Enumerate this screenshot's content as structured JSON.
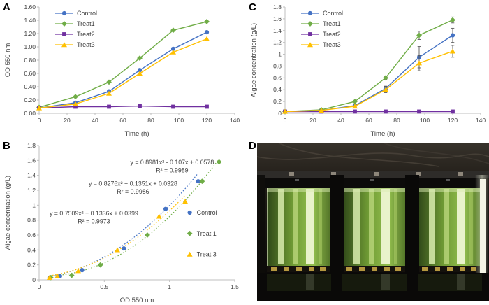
{
  "figure": {
    "panels": {
      "a": {
        "label": "A"
      },
      "b": {
        "label": "B"
      },
      "c": {
        "label": "C"
      },
      "d": {
        "label": "D"
      }
    }
  },
  "colors": {
    "control": "#4472C4",
    "treat1": "#70AD47",
    "treat2": "#7030A0",
    "treat3": "#FFC000",
    "axis": "#BFBFBF",
    "text": "#404040",
    "error_bar": "#595959"
  },
  "chart_data": [
    {
      "panel": "A",
      "type": "line",
      "xlabel": "Time (h)",
      "ylabel": "OD 550 nm",
      "xlim": [
        0,
        140
      ],
      "ylim": [
        0,
        1.6
      ],
      "xticks": [
        0,
        20,
        40,
        60,
        80,
        100,
        120,
        140
      ],
      "yticks": [
        0,
        0.2,
        0.4,
        0.6,
        0.8,
        1.0,
        1.2,
        1.4,
        1.6
      ],
      "xtick_format": "trim",
      "ytick_format": "fixed2",
      "grid": false,
      "legend_position": "top-left-inside",
      "x": [
        0,
        26,
        50,
        72,
        96,
        120
      ],
      "series": [
        {
          "name": "Control",
          "marker": "circle",
          "color": "control",
          "values": [
            0.08,
            0.16,
            0.33,
            0.65,
            0.97,
            1.22
          ]
        },
        {
          "name": "Treat1",
          "marker": "diamond",
          "color": "treat1",
          "values": [
            0.09,
            0.25,
            0.47,
            0.83,
            1.25,
            1.38
          ]
        },
        {
          "name": "Treat2",
          "marker": "square",
          "color": "treat2",
          "values": [
            0.08,
            0.1,
            0.1,
            0.11,
            0.1,
            0.1
          ]
        },
        {
          "name": "Treat3",
          "marker": "triangle",
          "color": "treat3",
          "values": [
            0.08,
            0.14,
            0.3,
            0.6,
            0.92,
            1.12
          ]
        }
      ]
    },
    {
      "panel": "C",
      "type": "line",
      "xlabel": "Time (h)",
      "ylabel": "Algae concentration (g/L)",
      "xlim": [
        0,
        140
      ],
      "ylim": [
        0,
        1.8
      ],
      "xticks": [
        0,
        20,
        40,
        60,
        80,
        100,
        120,
        140
      ],
      "yticks": [
        0,
        0.2,
        0.4,
        0.6,
        0.8,
        1.0,
        1.2,
        1.4,
        1.6,
        1.8
      ],
      "xtick_format": "trim",
      "ytick_format": "trim",
      "grid": false,
      "legend_position": "top-left-inside",
      "x": [
        0,
        26,
        50,
        72,
        96,
        120
      ],
      "series": [
        {
          "name": "Control",
          "marker": "circle",
          "color": "control",
          "values": [
            0.03,
            0.05,
            0.13,
            0.42,
            0.95,
            1.32
          ],
          "errors": [
            0,
            0,
            0,
            0.04,
            0.18,
            0.12
          ]
        },
        {
          "name": "Treat1",
          "marker": "diamond",
          "color": "treat1",
          "values": [
            0.03,
            0.06,
            0.2,
            0.6,
            1.32,
            1.58
          ],
          "errors": [
            0,
            0,
            0,
            0.03,
            0.07,
            0.05
          ]
        },
        {
          "name": "Treat2",
          "marker": "square",
          "color": "treat2",
          "values": [
            0.03,
            0.03,
            0.03,
            0.03,
            0.03,
            0.03
          ],
          "errors": [
            0,
            0,
            0,
            0,
            0,
            0
          ]
        },
        {
          "name": "Treat3",
          "marker": "triangle",
          "color": "treat3",
          "values": [
            0.03,
            0.05,
            0.12,
            0.4,
            0.85,
            1.05
          ],
          "errors": [
            0,
            0,
            0,
            0.05,
            0.13,
            0.1
          ]
        }
      ]
    },
    {
      "panel": "B",
      "type": "scatter",
      "xlabel": "OD 550 nm",
      "ylabel": "Algae concentration (g/L)",
      "xlim": [
        0,
        1.5
      ],
      "ylim": [
        0,
        1.8
      ],
      "xticks": [
        0,
        0.5,
        1,
        1.5
      ],
      "yticks": [
        0,
        0.2,
        0.4,
        0.6,
        0.8,
        1.0,
        1.2,
        1.4,
        1.6,
        1.8
      ],
      "xtick_format": "trim",
      "ytick_format": "trim",
      "grid": false,
      "legend_position": "right-inside",
      "series": [
        {
          "name": "Control",
          "marker": "circle",
          "color": "control",
          "points": [
            [
              0.08,
              0.03
            ],
            [
              0.16,
              0.05
            ],
            [
              0.33,
              0.13
            ],
            [
              0.65,
              0.42
            ],
            [
              0.97,
              0.95
            ],
            [
              1.22,
              1.32
            ]
          ],
          "trendline": {
            "a": 0.8276,
            "b": 0.1351,
            "c": 0.0328
          }
        },
        {
          "name": "Treat 1",
          "marker": "diamond",
          "color": "treat1",
          "points": [
            [
              0.09,
              0.03
            ],
            [
              0.25,
              0.06
            ],
            [
              0.47,
              0.2
            ],
            [
              0.83,
              0.6
            ],
            [
              1.25,
              1.32
            ],
            [
              1.38,
              1.58
            ]
          ],
          "trendline": {
            "a": 0.8981,
            "b": -0.107,
            "c": 0.0578
          }
        },
        {
          "name": "Treat 3",
          "marker": "triangle",
          "color": "treat3",
          "points": [
            [
              0.08,
              0.03
            ],
            [
              0.14,
              0.05
            ],
            [
              0.3,
              0.12
            ],
            [
              0.6,
              0.4
            ],
            [
              0.92,
              0.85
            ],
            [
              1.12,
              1.05
            ]
          ],
          "trendline": {
            "a": 0.7509,
            "b": 0.1336,
            "c": 0.0399
          }
        }
      ],
      "annotations": [
        {
          "line1": "y = 0.8981x² - 0.107x + 0.0578",
          "line2": "R² = 0.9989",
          "fx": 0.68,
          "fy": 0.14
        },
        {
          "line1": "y = 0.8276x² + 0.1351x + 0.0328",
          "line2": "R² = 0.9986",
          "fx": 0.48,
          "fy": 0.3
        },
        {
          "line1": "y = 0.7509x² + 0.1336x + 0.0399",
          "line2": "R² = 0.9973",
          "fx": 0.28,
          "fy": 0.52
        }
      ]
    }
  ]
}
